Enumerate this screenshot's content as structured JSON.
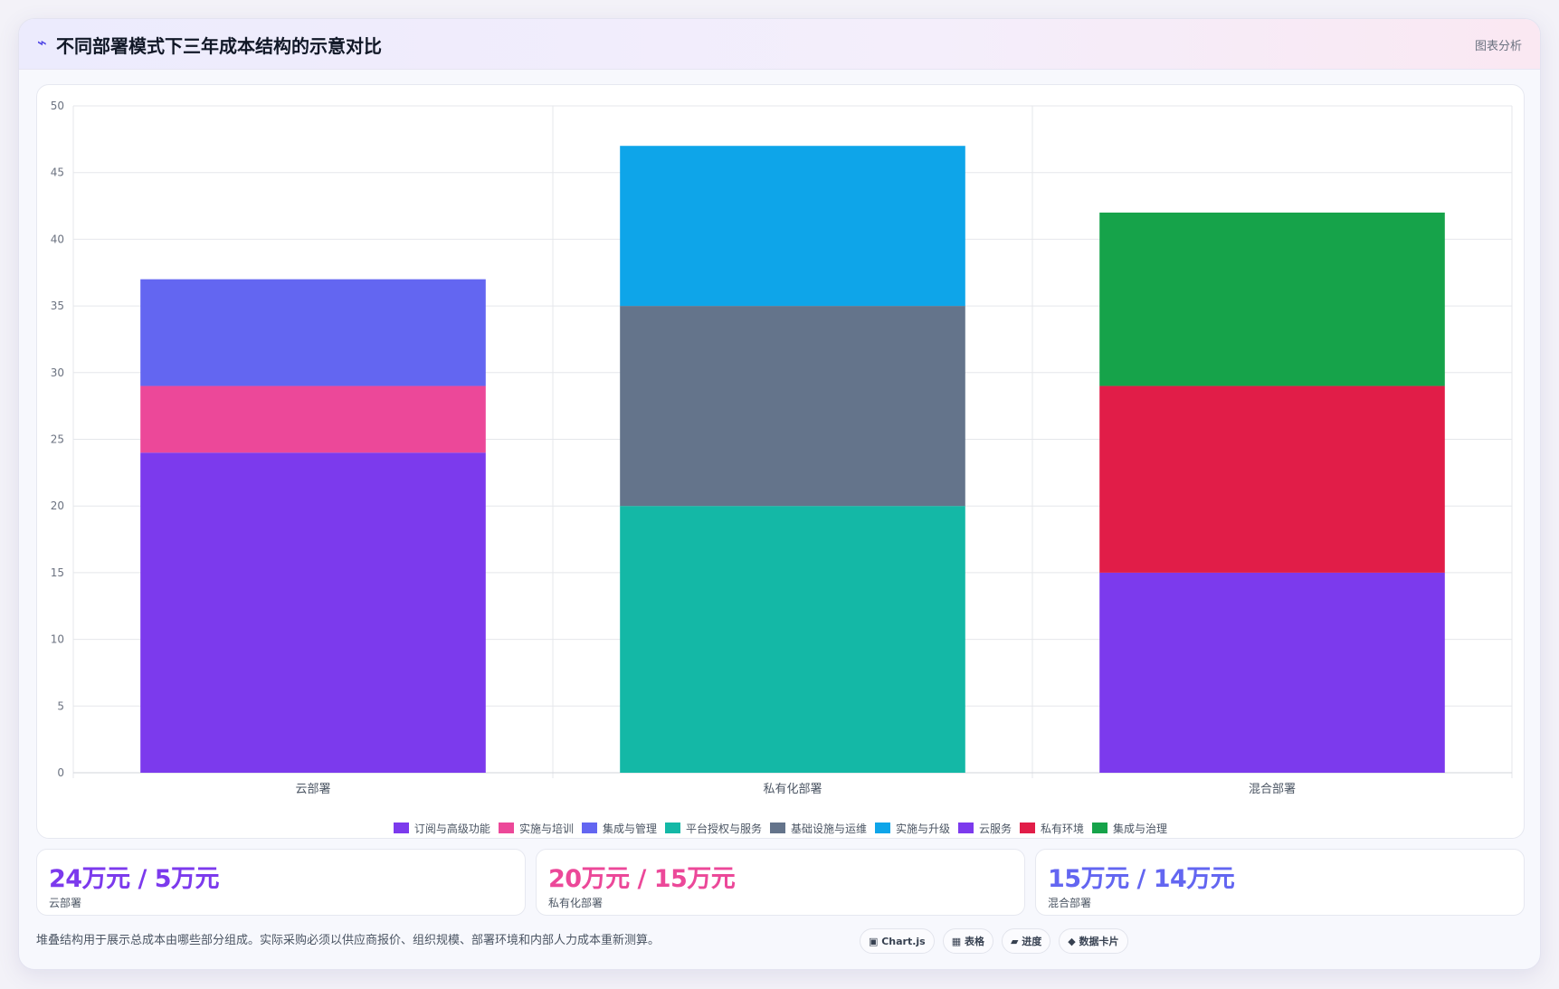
{
  "header": {
    "icon": "⌁",
    "title": "不同部署模式下三年成本结构的示意对比",
    "tag": "图表分析"
  },
  "chart_data": {
    "type": "bar",
    "stacked": true,
    "title": "",
    "xlabel": "",
    "ylabel": "",
    "ylim": [
      0,
      50
    ],
    "yticks": [
      0,
      5,
      10,
      15,
      20,
      25,
      30,
      35,
      40,
      45,
      50
    ],
    "grid": true,
    "legend_position": "bottom",
    "categories": [
      "云部署",
      "私有化部署",
      "混合部署"
    ],
    "series": [
      {
        "name": "订阅与高级功能",
        "color": "#7c3aed",
        "values": [
          24,
          0,
          0
        ]
      },
      {
        "name": "实施与培训",
        "color": "#ec4899",
        "values": [
          5,
          0,
          0
        ]
      },
      {
        "name": "集成与管理",
        "color": "#6366f1",
        "values": [
          8,
          0,
          0
        ]
      },
      {
        "name": "平台授权与服务",
        "color": "#14b8a6",
        "values": [
          0,
          20,
          0
        ]
      },
      {
        "name": "基础设施与运维",
        "color": "#64748b",
        "values": [
          0,
          15,
          0
        ]
      },
      {
        "name": "实施与升级",
        "color": "#0ea5e9",
        "values": [
          0,
          12,
          0
        ]
      },
      {
        "name": "云服务",
        "color": "#7c3aed",
        "values": [
          0,
          0,
          15
        ]
      },
      {
        "name": "私有环境",
        "color": "#e11d48",
        "values": [
          0,
          0,
          14
        ]
      },
      {
        "name": "集成与治理",
        "color": "#16a34a",
        "values": [
          0,
          0,
          13
        ]
      }
    ]
  },
  "stats": [
    {
      "value": "24万元 / 5万元",
      "label": "云部署",
      "color": "#7c3aed"
    },
    {
      "value": "20万元 / 15万元",
      "label": "私有化部署",
      "color": "#ec4899"
    },
    {
      "value": "15万元 / 14万元",
      "label": "混合部署",
      "color": "#6366f1"
    }
  ],
  "footnote": "堆叠结构用于展示总成本由哪些部分组成。实际采购必须以供应商报价、组织规模、部署环境和内部人力成本重新测算。",
  "chips": [
    "▣ Chart.js",
    "▦ 表格",
    "▰ 进度",
    "◆ 数据卡片"
  ]
}
